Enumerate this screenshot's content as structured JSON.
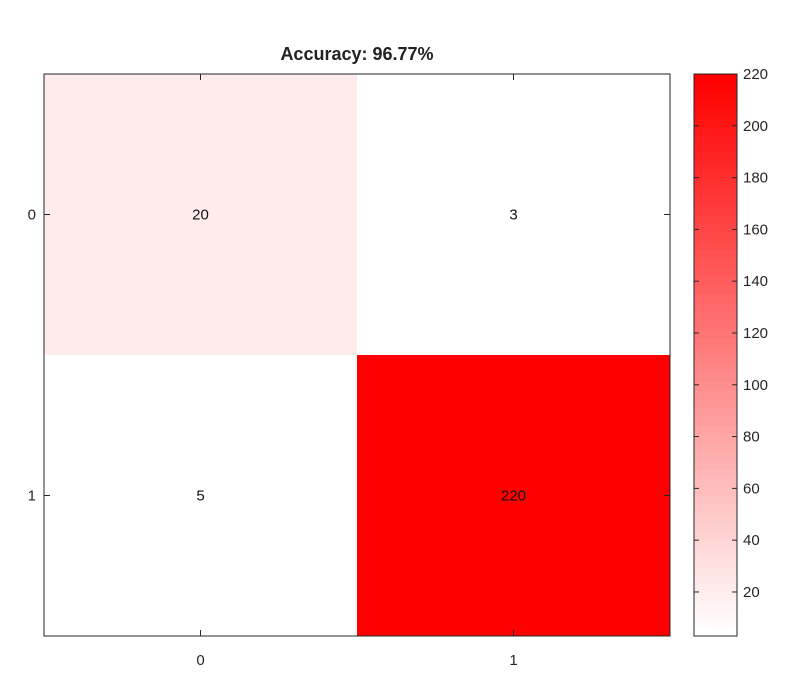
{
  "chart_data": {
    "type": "heatmap",
    "title": "Accuracy: 96.77%",
    "x_categories": [
      "0",
      "1"
    ],
    "y_categories": [
      "0",
      "1"
    ],
    "values": [
      [
        20,
        3
      ],
      [
        5,
        220
      ]
    ],
    "cell_labels": [
      [
        "20",
        "3"
      ],
      [
        "5",
        "220"
      ]
    ],
    "colorbar": {
      "range": [
        3,
        220
      ],
      "ticks": [
        20,
        40,
        60,
        80,
        100,
        120,
        140,
        160,
        180,
        200,
        220
      ],
      "tick_labels": [
        "20",
        "40",
        "60",
        "80",
        "100",
        "120",
        "140",
        "160",
        "180",
        "200",
        "220"
      ],
      "levels": 64,
      "colors": {
        "low": "#ffffff",
        "high": "#ff0000"
      }
    },
    "grid": false
  }
}
